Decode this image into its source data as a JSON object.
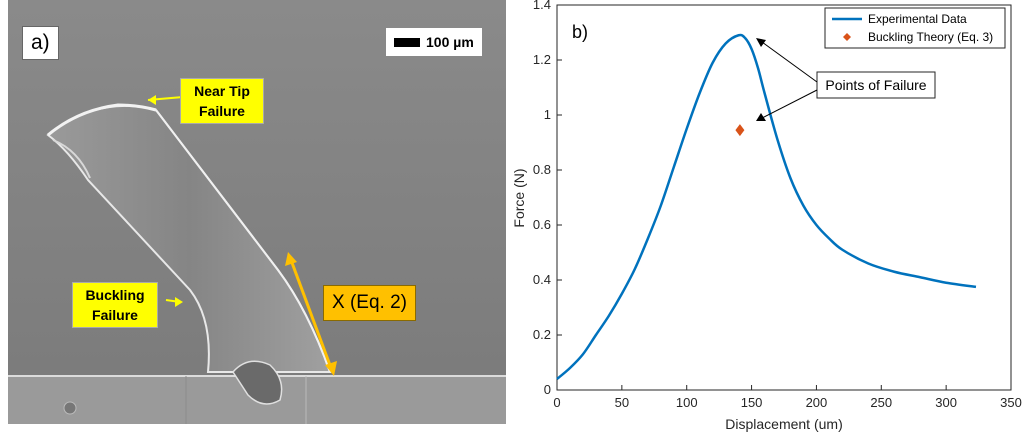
{
  "panel_a": {
    "label": "a)",
    "scale_bar": "100 µm",
    "near_tip": "Near Tip Failure",
    "buckling": "Buckling Failure",
    "dimension": "X (Eq. 2)"
  },
  "panel_b": {
    "label": "b)",
    "annotation": "Points of Failure"
  },
  "chart_data": {
    "type": "line",
    "xlabel": "Displacement (um)",
    "ylabel": "Force (N)",
    "xlim": [
      0,
      350
    ],
    "ylim": [
      0,
      1.4
    ],
    "xticks": [
      0,
      50,
      100,
      150,
      200,
      250,
      300,
      350
    ],
    "yticks": [
      0,
      0.2,
      0.4,
      0.6,
      0.8,
      1,
      1.2,
      1.4
    ],
    "grid": false,
    "legend_position": "top-right",
    "series": [
      {
        "name": "Experimental Data",
        "color": "#0072BD",
        "x": [
          0,
          10,
          20,
          30,
          40,
          50,
          60,
          70,
          80,
          90,
          100,
          110,
          120,
          130,
          140,
          145,
          150,
          155,
          160,
          170,
          180,
          190,
          200,
          210,
          220,
          240,
          260,
          280,
          300,
          323
        ],
        "y": [
          0.04,
          0.08,
          0.13,
          0.2,
          0.27,
          0.35,
          0.44,
          0.55,
          0.67,
          0.81,
          0.95,
          1.08,
          1.19,
          1.26,
          1.29,
          1.28,
          1.24,
          1.17,
          1.08,
          0.91,
          0.77,
          0.67,
          0.6,
          0.55,
          0.51,
          0.46,
          0.43,
          0.41,
          0.39,
          0.375
        ]
      },
      {
        "name": "Buckling Theory (Eq. 3)",
        "color": "#D95319",
        "marker": "diamond",
        "x": [
          141
        ],
        "y": [
          0.945
        ]
      }
    ]
  }
}
